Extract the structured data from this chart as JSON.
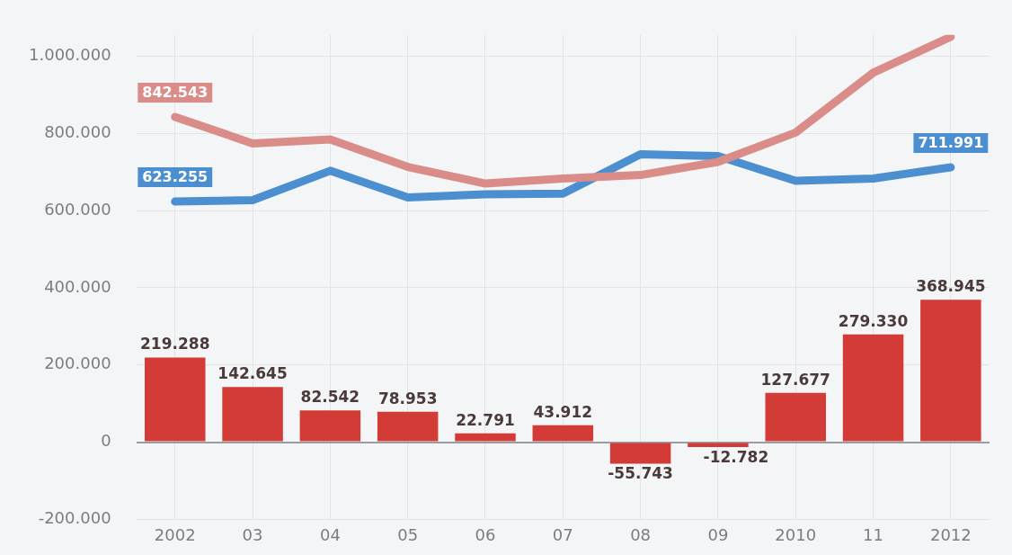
{
  "chart_data": {
    "type": "bar",
    "categories": [
      "2002",
      "03",
      "04",
      "05",
      "06",
      "07",
      "08",
      "09",
      "2010",
      "11",
      "2012"
    ],
    "series": [
      {
        "color": "#d23b36",
        "values": [
          219288,
          142645,
          82542,
          78953,
          22791,
          43912,
          -55743,
          -12782,
          127677,
          279330,
          368945
        ],
        "value_labels": [
          "219.288",
          "142.645",
          "82.542",
          "78.953",
          "22.791",
          "43.912",
          "-55.743",
          "-12.782",
          "127.677",
          "279.330",
          "368.945"
        ]
      },
      {
        "type": "line",
        "color": "#d98c88",
        "values": [
          842543,
          774000,
          784000,
          713000,
          670000,
          683000,
          692000,
          726000,
          802000,
          957000,
          1050000
        ],
        "value_labels": [
          "842.543",
          null,
          null,
          null,
          null,
          null,
          null,
          null,
          null,
          null,
          null
        ]
      },
      {
        "type": "line",
        "color": "#4c8fd0",
        "values": [
          623255,
          627000,
          703000,
          634000,
          642000,
          644000,
          746000,
          741000,
          677000,
          683000,
          711991
        ],
        "value_labels": [
          "623.255",
          null,
          null,
          null,
          null,
          null,
          null,
          null,
          null,
          null,
          "711.991"
        ]
      }
    ],
    "ylim": [
      -200000,
      1055000
    ],
    "yticks": [
      {
        "value": -200000,
        "label": "-200.000"
      },
      0,
      {
        "value": 200000,
        "label": "200.000"
      },
      {
        "value": 400000,
        "label": "400.000"
      },
      {
        "value": 600000,
        "label": "600.000"
      },
      {
        "value": 800000,
        "label": "800.000"
      },
      {
        "value": 1000000,
        "label": "1.000.000"
      }
    ],
    "grid": true,
    "legend": false,
    "marker": "none",
    "line_style": "solid"
  }
}
